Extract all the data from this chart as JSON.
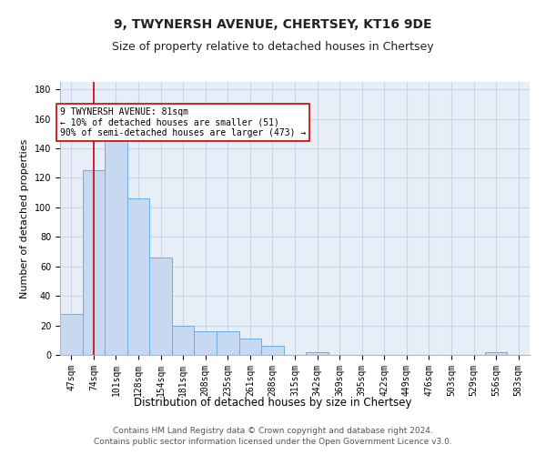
{
  "title": "9, TWYNERSH AVENUE, CHERTSEY, KT16 9DE",
  "subtitle": "Size of property relative to detached houses in Chertsey",
  "xlabel": "Distribution of detached houses by size in Chertsey",
  "ylabel": "Number of detached properties",
  "bar_labels": [
    "47sqm",
    "74sqm",
    "101sqm",
    "128sqm",
    "154sqm",
    "181sqm",
    "208sqm",
    "235sqm",
    "261sqm",
    "288sqm",
    "315sqm",
    "342sqm",
    "369sqm",
    "395sqm",
    "422sqm",
    "449sqm",
    "476sqm",
    "503sqm",
    "529sqm",
    "556sqm",
    "583sqm"
  ],
  "bar_values": [
    28,
    125,
    150,
    106,
    66,
    20,
    16,
    16,
    11,
    6,
    0,
    2,
    0,
    0,
    0,
    0,
    0,
    0,
    0,
    2,
    0
  ],
  "bar_color": "#c6d9f1",
  "bar_edge_color": "#6aaee0",
  "grid_color": "#c8d4e8",
  "background_color": "#e8eef8",
  "vline_x": 1.0,
  "vline_color": "#cc0000",
  "annotation_text": "9 TWYNERSH AVENUE: 81sqm\n← 10% of detached houses are smaller (51)\n90% of semi-detached houses are larger (473) →",
  "annotation_box_color": "#ffffff",
  "annotation_box_edge": "#cc0000",
  "ylim": [
    0,
    185
  ],
  "yticks": [
    0,
    20,
    40,
    60,
    80,
    100,
    120,
    140,
    160,
    180
  ],
  "footer": "Contains HM Land Registry data © Crown copyright and database right 2024.\nContains public sector information licensed under the Open Government Licence v3.0.",
  "title_fontsize": 10,
  "subtitle_fontsize": 9,
  "xlabel_fontsize": 8.5,
  "ylabel_fontsize": 8,
  "tick_fontsize": 7,
  "footer_fontsize": 6.5,
  "annotation_fontsize": 7
}
